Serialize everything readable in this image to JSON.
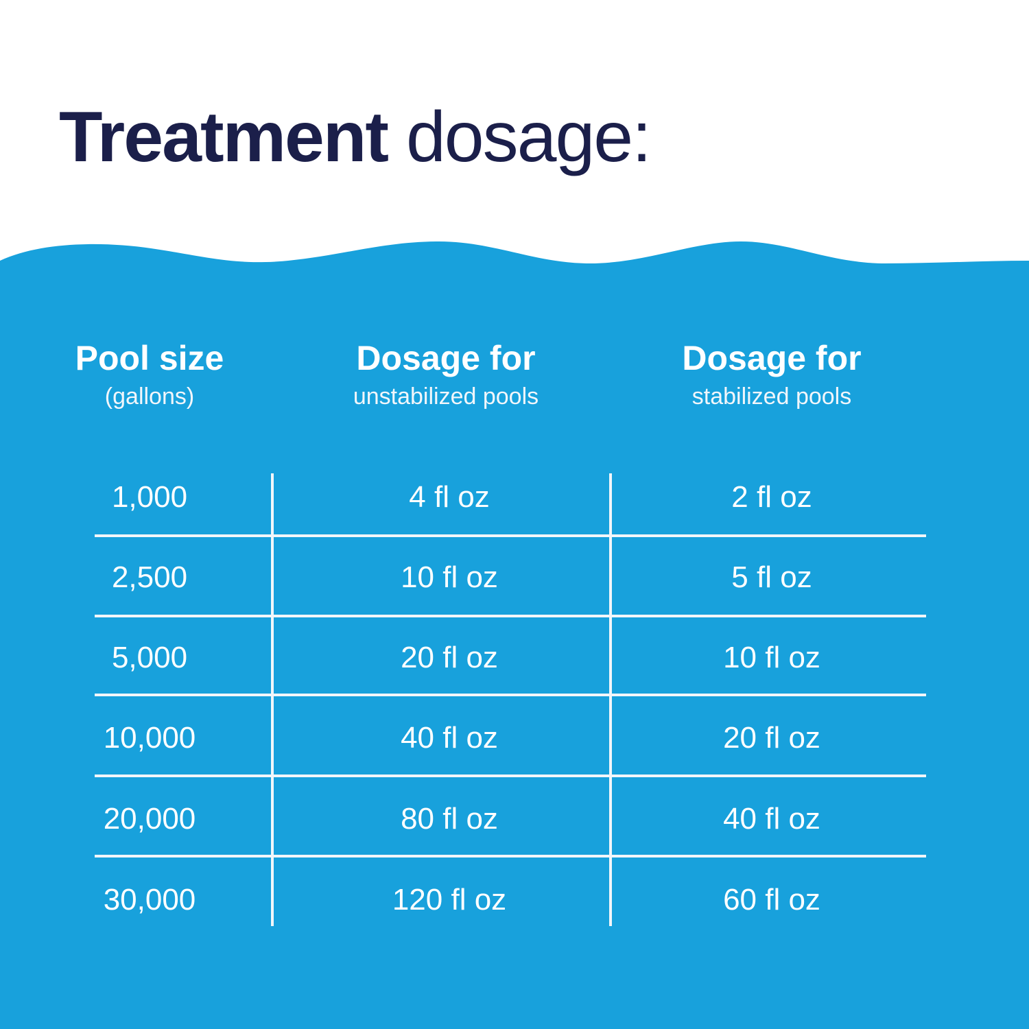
{
  "title": {
    "bold": "Treatment",
    "light": " dosage:"
  },
  "colors": {
    "background": "#ffffff",
    "water": "#18a1dc",
    "title_text": "#1b1f4a",
    "table_text": "#ffffff"
  },
  "table": {
    "headers": [
      {
        "main": "Pool size",
        "sub": "(gallons)"
      },
      {
        "main": "Dosage for",
        "sub": "unstabilized pools"
      },
      {
        "main": "Dosage for",
        "sub": "stabilized pools"
      }
    ],
    "rows": [
      [
        "1,000",
        "4 fl oz",
        "2 fl oz"
      ],
      [
        "2,500",
        "10 fl oz",
        "5 fl oz"
      ],
      [
        "5,000",
        "20 fl oz",
        "10 fl oz"
      ],
      [
        "10,000",
        "40 fl oz",
        "20 fl oz"
      ],
      [
        "20,000",
        "80 fl oz",
        "40 fl oz"
      ],
      [
        "30,000",
        "120 fl oz",
        "60 fl oz"
      ]
    ]
  }
}
